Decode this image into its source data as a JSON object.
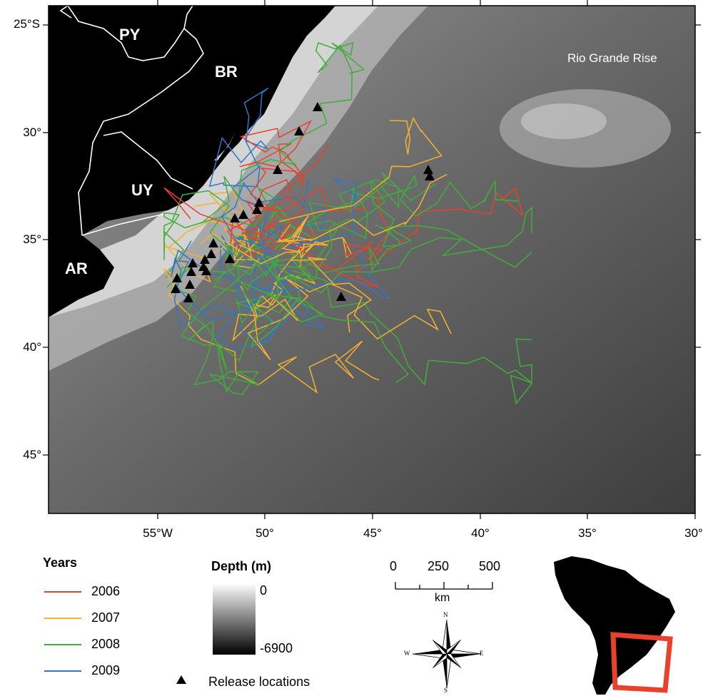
{
  "map": {
    "lat_labels": [
      "25°S",
      "30°",
      "35°",
      "40°",
      "45°"
    ],
    "lon_labels": [
      "55°W",
      "50°",
      "45°",
      "40°",
      "35°",
      "30°"
    ],
    "countries": [
      "PY",
      "BR",
      "UY",
      "AR"
    ],
    "feature_label": "Rio Grande Rise"
  },
  "legend": {
    "years_title": "Years",
    "years": [
      {
        "label": "2006",
        "color": "#e8412c"
      },
      {
        "label": "2007",
        "color": "#f4b132"
      },
      {
        "label": "2008",
        "color": "#3fae3a"
      },
      {
        "label": "2009",
        "color": "#2f77c8"
      }
    ],
    "depth_title": "Depth (m)",
    "depth_max": "0",
    "depth_min": "-6900",
    "release_label": "Release locations"
  },
  "scale_bar": {
    "ticks": [
      "0",
      "250",
      "500"
    ],
    "unit": "km"
  },
  "compass": {
    "n": "N",
    "s": "S",
    "e": "E",
    "w": "W"
  },
  "inset": {
    "frame_color": "#e8412c"
  }
}
